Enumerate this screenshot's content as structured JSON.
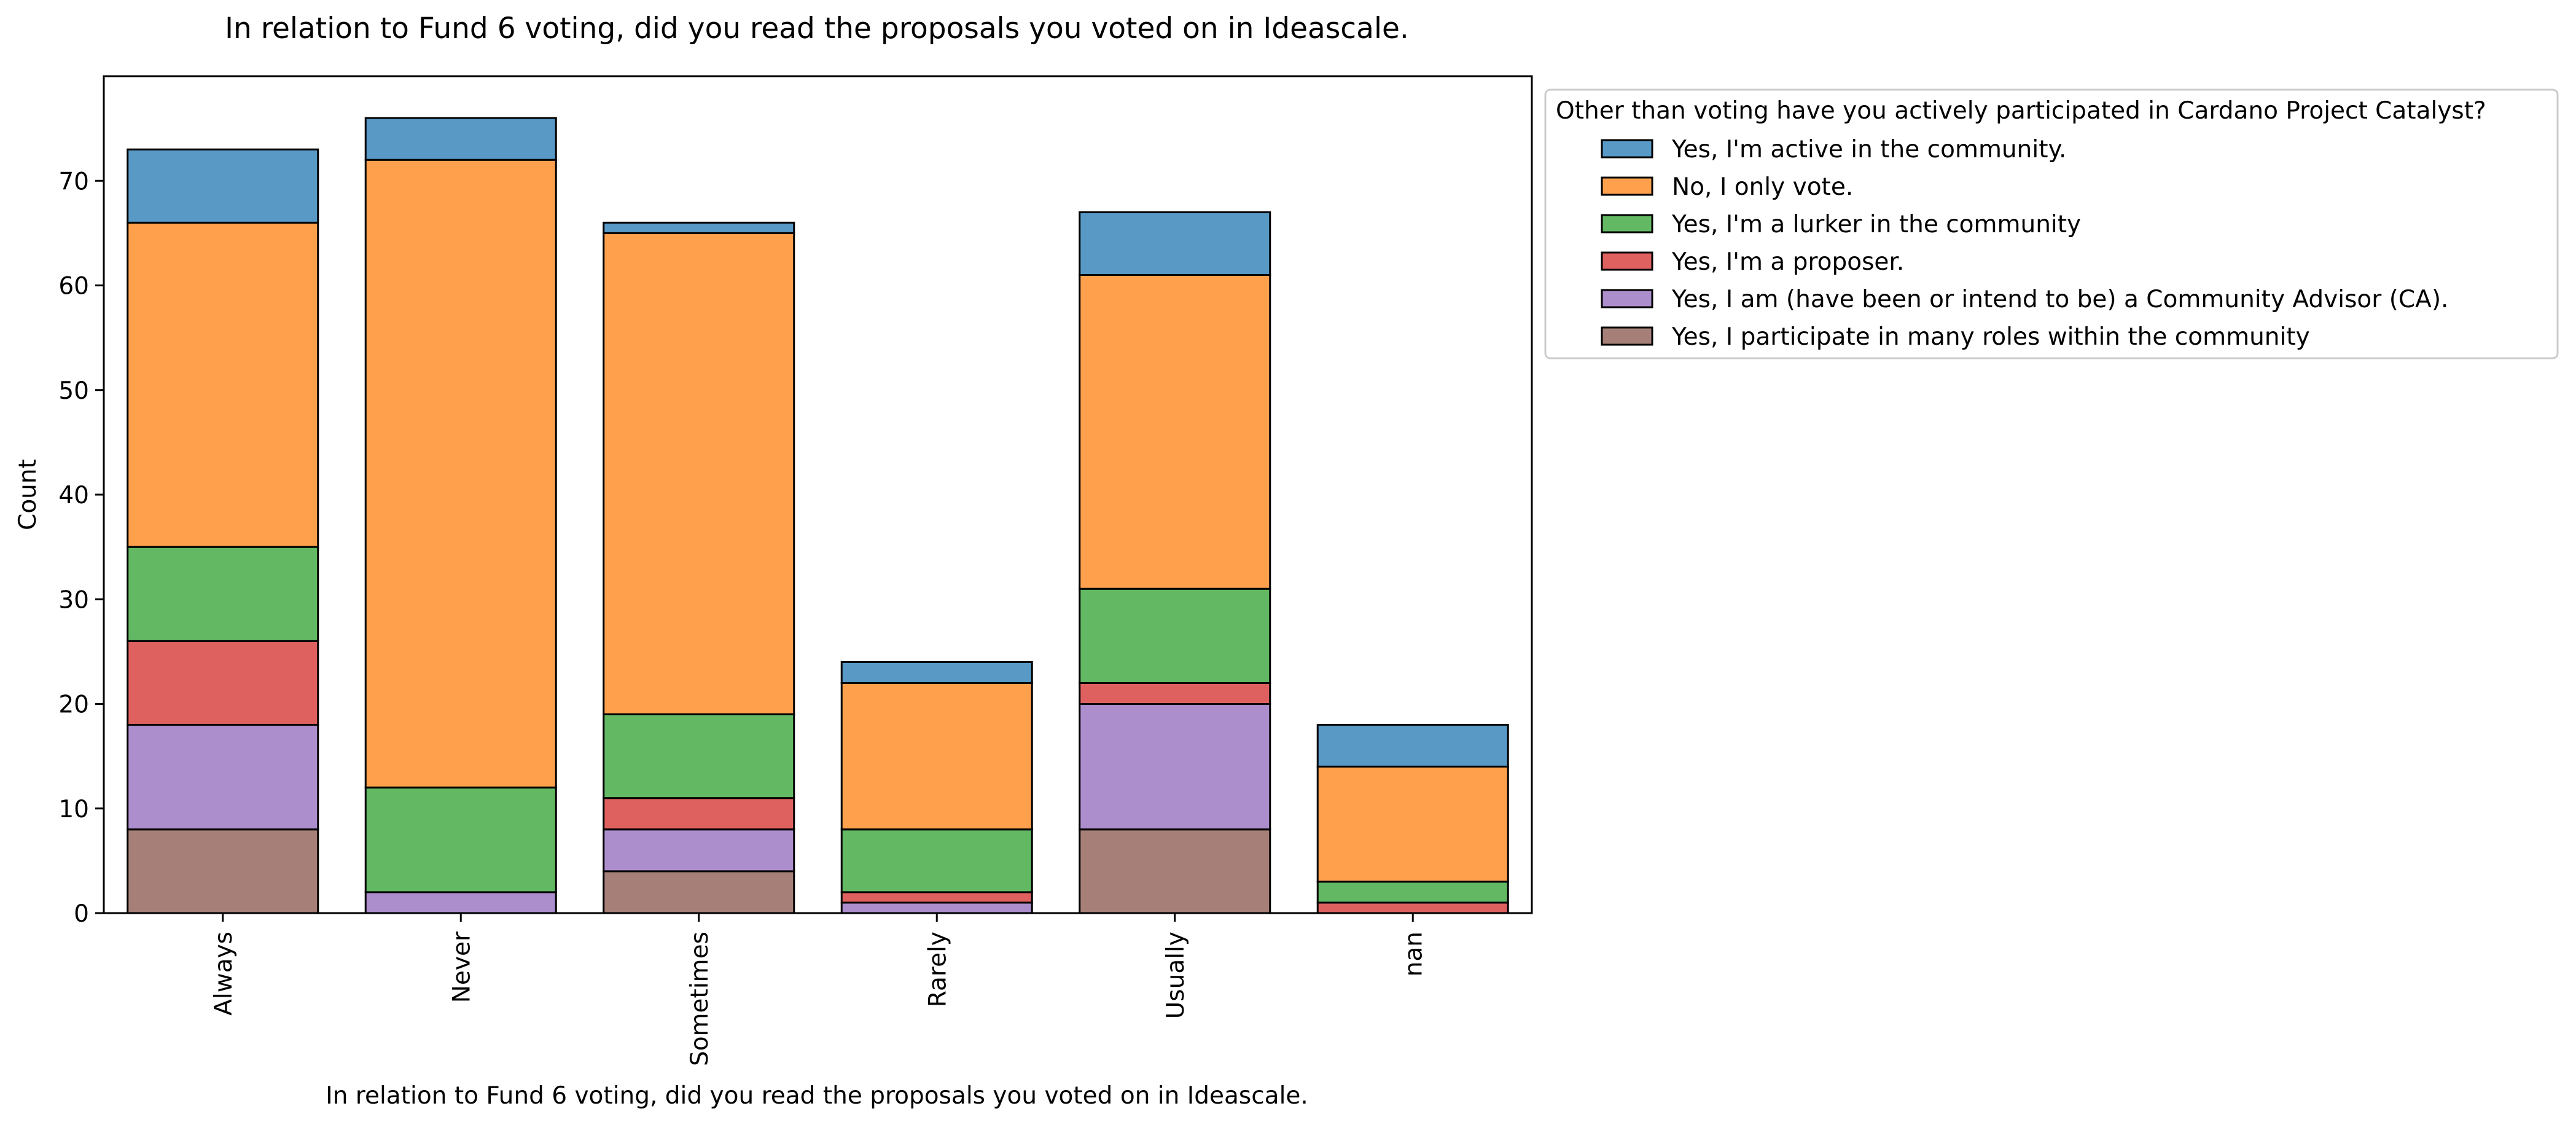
{
  "chart_data": {
    "type": "bar",
    "stacked": true,
    "title": "In relation to Fund 6 voting, did you read the proposals you voted on in Ideascale.",
    "xlabel": "In relation to Fund 6 voting, did you read the proposals you voted on in Ideascale.",
    "ylabel": "Count",
    "ylim": [
      0,
      80
    ],
    "yticks": [
      0,
      10,
      20,
      30,
      40,
      50,
      60,
      70
    ],
    "categories": [
      "Always",
      "Never",
      "Sometimes",
      "Rarely",
      "Usually",
      "nan"
    ],
    "legend": {
      "title": "Other than voting have you actively participated in Cardano Project Catalyst?",
      "placement": "outside-upper-right"
    },
    "series": [
      {
        "name": "Yes, I'm active in the community.",
        "color": "#5899c6",
        "values": [
          7,
          4,
          1,
          2,
          6,
          4
        ]
      },
      {
        "name": "No, I only vote.",
        "color": "#ffa04d",
        "values": [
          31,
          60,
          46,
          14,
          30,
          11
        ]
      },
      {
        "name": "Yes, I'm a lurker in the community",
        "color": "#63b863",
        "values": [
          9,
          10,
          8,
          6,
          9,
          2
        ]
      },
      {
        "name": "Yes, I'm a proposer.",
        "color": "#de6160",
        "values": [
          8,
          0,
          3,
          1,
          2,
          1
        ]
      },
      {
        "name": "Yes, I am (have been or intend to be) a Community Advisor (CA).",
        "color": "#ad8ecd",
        "values": [
          10,
          2,
          4,
          1,
          12,
          0
        ]
      },
      {
        "name": "Yes, I participate in many roles within the community",
        "color": "#a68078",
        "values": [
          8,
          0,
          4,
          0,
          8,
          0
        ]
      }
    ],
    "stack_order": "bottom-up from last series to first"
  }
}
